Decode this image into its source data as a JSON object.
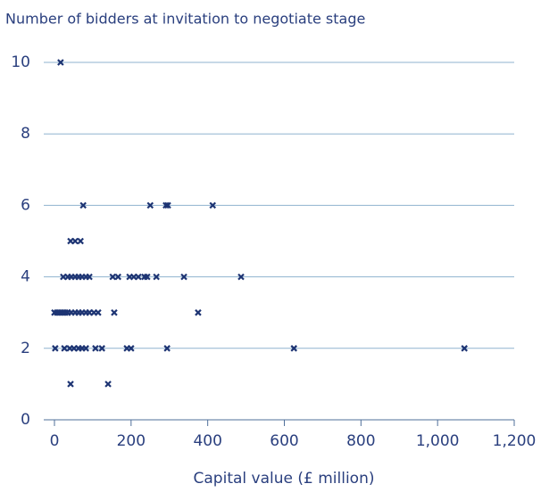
{
  "chart_data": {
    "type": "scatter",
    "title": "Number of bidders at invitation to negotiate stage",
    "x_label": "Capital value (£ million)",
    "color": "#1d3473",
    "x": [
      16,
      75,
      250,
      291,
      296,
      413,
      42,
      54,
      68,
      23,
      35,
      44,
      54,
      63,
      72,
      82,
      91,
      152,
      166,
      196,
      207,
      219,
      235,
      242,
      266,
      338,
      487,
      0,
      7,
      14,
      21,
      28,
      35,
      44,
      54,
      63,
      72,
      82,
      91,
      103,
      114,
      156,
      375,
      2,
      26,
      40,
      51,
      63,
      72,
      82,
      107,
      124,
      189,
      200,
      294,
      625,
      1070,
      42,
      140
    ],
    "values": [
      10,
      6,
      6,
      6,
      6,
      6,
      5,
      5,
      5,
      4,
      4,
      4,
      4,
      4,
      4,
      4,
      4,
      4,
      4,
      4,
      4,
      4,
      4,
      4,
      4,
      4,
      4,
      3,
      3,
      3,
      3,
      3,
      3,
      3,
      3,
      3,
      3,
      3,
      3,
      3,
      3,
      3,
      3,
      2,
      2,
      2,
      2,
      2,
      2,
      2,
      2,
      2,
      2,
      2,
      2,
      2,
      2,
      1,
      1
    ],
    "xlim": [
      0,
      1200
    ],
    "xticks": [
      0,
      200,
      400,
      600,
      800,
      {
        "value": 1000,
        "label": "1,000"
      },
      {
        "value": 1200,
        "label": "1,200"
      }
    ],
    "ylim": [
      0,
      10
    ],
    "yticks": [
      0,
      2,
      4,
      6,
      8,
      10
    ],
    "grid": true
  }
}
